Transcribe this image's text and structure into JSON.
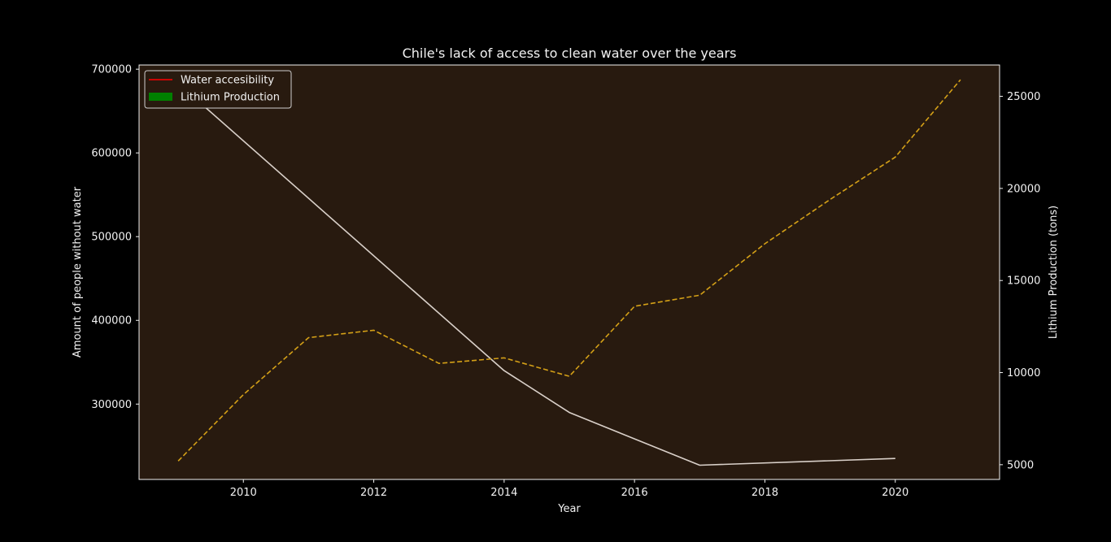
{
  "chart_data": {
    "type": "line",
    "title": "Chile's lack of access to clean water over the years",
    "xlabel": "Year",
    "ylabel_left": "Amount of people without water",
    "ylabel_right": "Lithium Production (tons)",
    "xlim": [
      2008.4,
      2021.6
    ],
    "ylim_left": [
      210000,
      705000
    ],
    "ylim_right": [
      4200,
      26700
    ],
    "x_ticks": [
      2010,
      2012,
      2014,
      2016,
      2018,
      2020
    ],
    "y_left_ticks": [
      300000,
      400000,
      500000,
      600000,
      700000
    ],
    "y_right_ticks": [
      5000,
      10000,
      15000,
      20000,
      25000
    ],
    "grid": false,
    "legend_position": "top-left",
    "plot_background": "#281a0f",
    "figure_background": "#000000",
    "series": [
      {
        "name": "Water accesibility",
        "axis": "left",
        "color": "#d9d0c9",
        "legend_color": "#ff0000",
        "style": "solid",
        "x": [
          2009,
          2014,
          2015,
          2017,
          2020
        ],
        "y": [
          683000,
          340000,
          290000,
          227000,
          235000
        ]
      },
      {
        "name": "Lithium Production",
        "axis": "right",
        "color": "#d4a017",
        "legend_color": "#008000",
        "style": "dashed",
        "x": [
          2009,
          2010,
          2011,
          2012,
          2013,
          2014,
          2015,
          2016,
          2017,
          2018,
          2019,
          2020,
          2021
        ],
        "y": [
          5200,
          8800,
          11900,
          12300,
          10500,
          10800,
          9800,
          13600,
          14200,
          17000,
          19400,
          21700,
          25900
        ]
      }
    ]
  }
}
